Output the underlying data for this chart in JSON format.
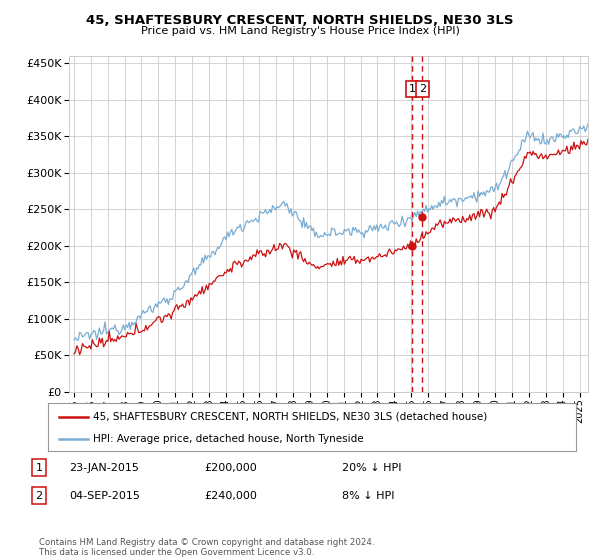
{
  "title": "45, SHAFTESBURY CRESCENT, NORTH SHIELDS, NE30 3LS",
  "subtitle": "Price paid vs. HM Land Registry's House Price Index (HPI)",
  "ylim": [
    0,
    460000
  ],
  "yticks": [
    0,
    50000,
    100000,
    150000,
    200000,
    250000,
    300000,
    350000,
    400000,
    450000
  ],
  "legend_line1": "45, SHAFTESBURY CRESCENT, NORTH SHIELDS, NE30 3LS (detached house)",
  "legend_line2": "HPI: Average price, detached house, North Tyneside",
  "annotation1_label": "1",
  "annotation1_date": "23-JAN-2015",
  "annotation1_price": "£200,000",
  "annotation1_hpi": "20% ↓ HPI",
  "annotation1_year": 2015.06,
  "annotation1_value": 200000,
  "annotation2_label": "2",
  "annotation2_date": "04-SEP-2015",
  "annotation2_price": "£240,000",
  "annotation2_hpi": "8% ↓ HPI",
  "annotation2_year": 2015.67,
  "annotation2_value": 240000,
  "footer": "Contains HM Land Registry data © Crown copyright and database right 2024.\nThis data is licensed under the Open Government Licence v3.0.",
  "hpi_color": "#7aadd4",
  "price_color": "#cc1111",
  "vline_color": "#cc1111",
  "background_color": "#ffffff",
  "grid_color": "#cccccc",
  "xmin": 1994.7,
  "xmax": 2025.5
}
